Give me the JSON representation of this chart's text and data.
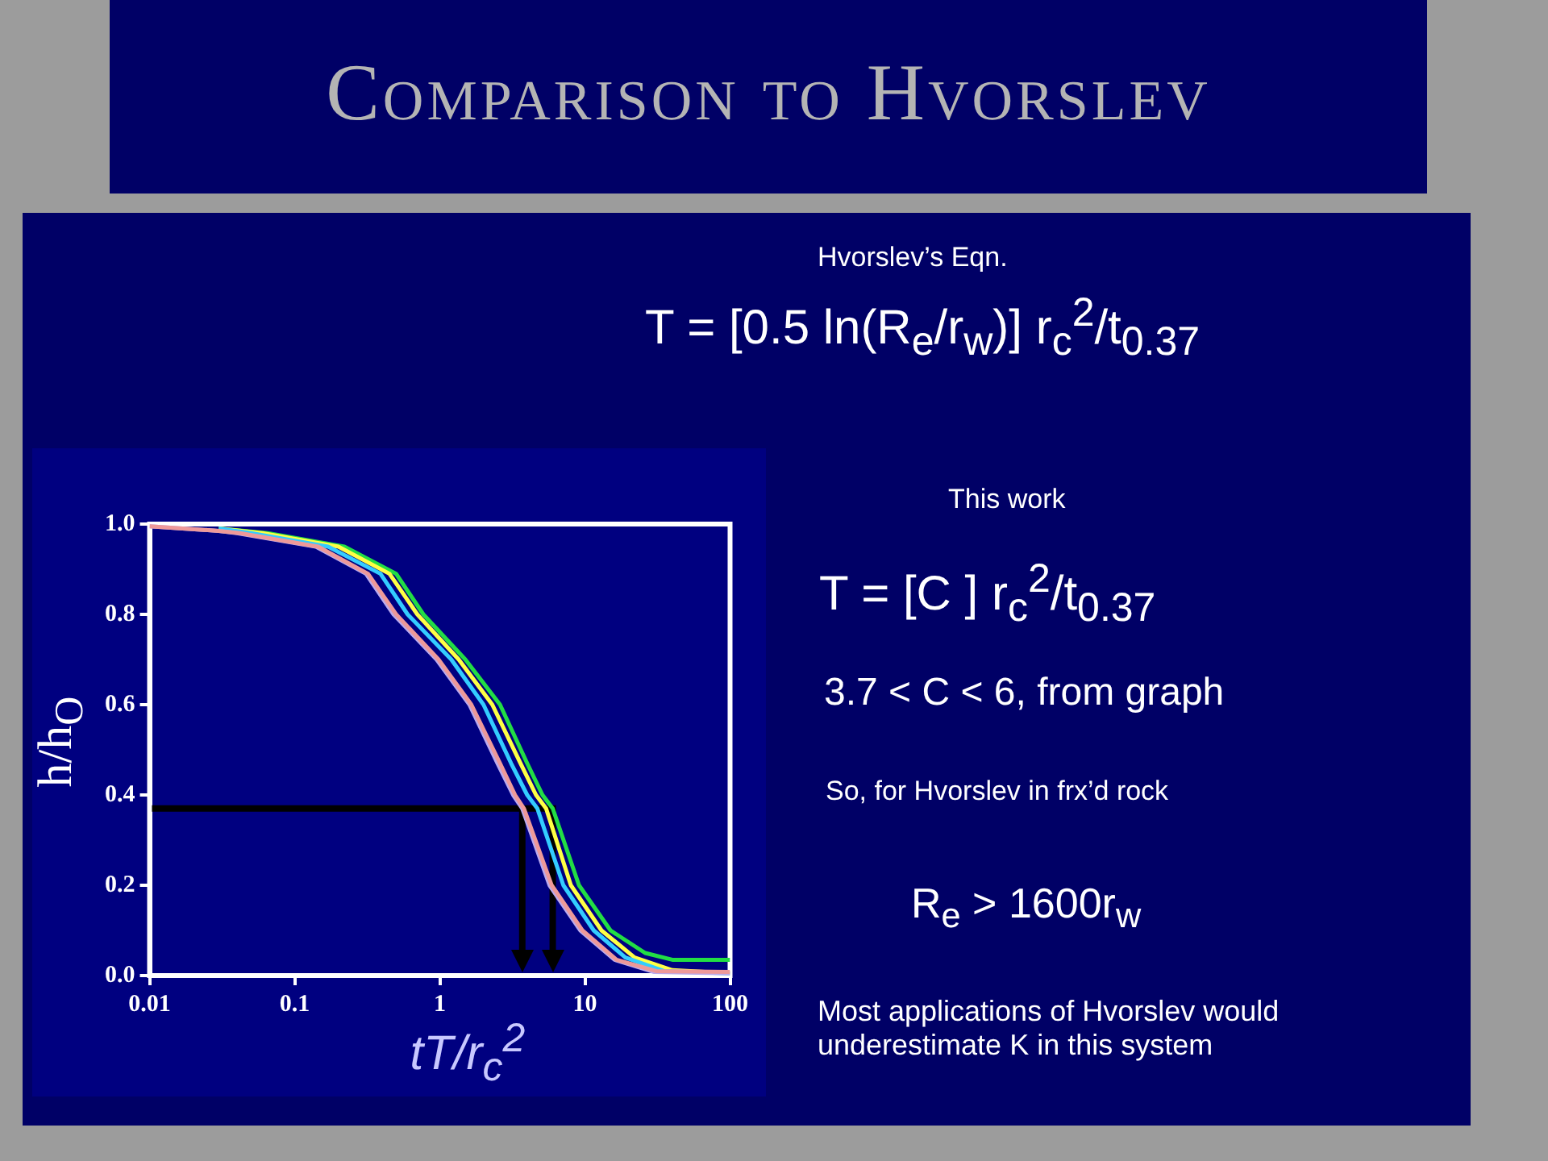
{
  "chart_data": {
    "type": "line",
    "title": "Comparison to Hvorslev",
    "xlabel": "tT/r$_{c}$$^{2}$",
    "ylabel": "h/h$_{O}$",
    "log": "x",
    "xlim": [
      0.01,
      100
    ],
    "xticks": [
      0.01,
      0.1,
      1,
      10,
      100
    ],
    "ylim": [
      0,
      1
    ],
    "yticks": [
      {
        "value": 0,
        "label": "0.0"
      },
      {
        "value": 0.2,
        "label": "0.2"
      },
      {
        "value": 0.4,
        "label": "0.4"
      },
      {
        "value": 0.6,
        "label": "0.6"
      },
      {
        "value": 0.8,
        "label": "0.8"
      },
      {
        "value": 1,
        "label": "1.0"
      }
    ],
    "grid": false,
    "legend": false,
    "marker": "none",
    "series": [
      {
        "color": "#ee9999",
        "x": [
          0.01,
          0.03,
          0.042,
          0.145,
          0.32,
          0.5,
          0.98,
          1.65,
          2.6,
          3.3,
          3.8,
          5.9,
          9.6,
          16.5,
          31,
          100
        ],
        "values": [
          0.995,
          0.985,
          0.98,
          0.95,
          0.89,
          0.8,
          0.7,
          0.6,
          0.47,
          0.4,
          0.37,
          0.2,
          0.1,
          0.035,
          0.01,
          0.008
        ]
      },
      {
        "color": "#bbaaee",
        "x": [
          0.01,
          0.03,
          0.04,
          0.14,
          0.31,
          0.48,
          0.95,
          1.6,
          2.5,
          3.2,
          3.7,
          5.7,
          9.3,
          16,
          30,
          100
        ],
        "values": [
          0.995,
          0.985,
          0.98,
          0.95,
          0.89,
          0.8,
          0.7,
          0.6,
          0.47,
          0.4,
          0.37,
          0.2,
          0.1,
          0.035,
          0.008,
          0.005
        ]
      },
      {
        "color": "#33ccff",
        "x": [
          0.03,
          0.05,
          0.17,
          0.39,
          0.6,
          1.2,
          2.0,
          3.1,
          4.0,
          4.7,
          7.1,
          11.5,
          19,
          35,
          100
        ],
        "values": [
          0.99,
          0.98,
          0.95,
          0.89,
          0.8,
          0.7,
          0.6,
          0.47,
          0.4,
          0.37,
          0.2,
          0.1,
          0.04,
          0.01,
          0.005
        ]
      },
      {
        "color": "#ffff44",
        "x": [
          0.03,
          0.06,
          0.2,
          0.45,
          0.7,
          1.35,
          2.3,
          3.6,
          4.6,
          5.4,
          8,
          13,
          22,
          40,
          100
        ],
        "values": [
          0.99,
          0.98,
          0.95,
          0.89,
          0.8,
          0.7,
          0.6,
          0.47,
          0.4,
          0.37,
          0.2,
          0.1,
          0.04,
          0.012,
          0.005
        ]
      },
      {
        "color": "#22dd44",
        "x": [
          0.03,
          0.065,
          0.22,
          0.5,
          0.77,
          1.5,
          2.6,
          4,
          5.1,
          6,
          9.1,
          15,
          26,
          40,
          100
        ],
        "values": [
          0.99,
          0.98,
          0.95,
          0.89,
          0.8,
          0.7,
          0.6,
          0.47,
          0.4,
          0.37,
          0.2,
          0.1,
          0.05,
          0.035,
          0.035
        ]
      }
    ],
    "ref_lines": [
      {
        "axis": "y",
        "value": 0.37,
        "color": "#000000"
      },
      {
        "axis": "x",
        "value": 3.7,
        "color": "#000000"
      },
      {
        "axis": "x",
        "value": 6,
        "color": "#000000"
      }
    ],
    "annotations": [
      "Hvorslev’s Eqn.",
      "T = [0.5 ln(R$_{e}$/r$_{w}$)] r$_{c}$$^{2}$/t$_{0.37}$",
      "This work",
      "T = [C ] r$_{c}$$^{2}$/t$_{0.37}$",
      "3.7 < C < 6,   from graph",
      "So, for Hvorslev in frx’d rock",
      "R$_{e}$ > 1600r$_{w}$",
      "Most applications of Hvorslev would underestimate K in this system"
    ]
  }
}
